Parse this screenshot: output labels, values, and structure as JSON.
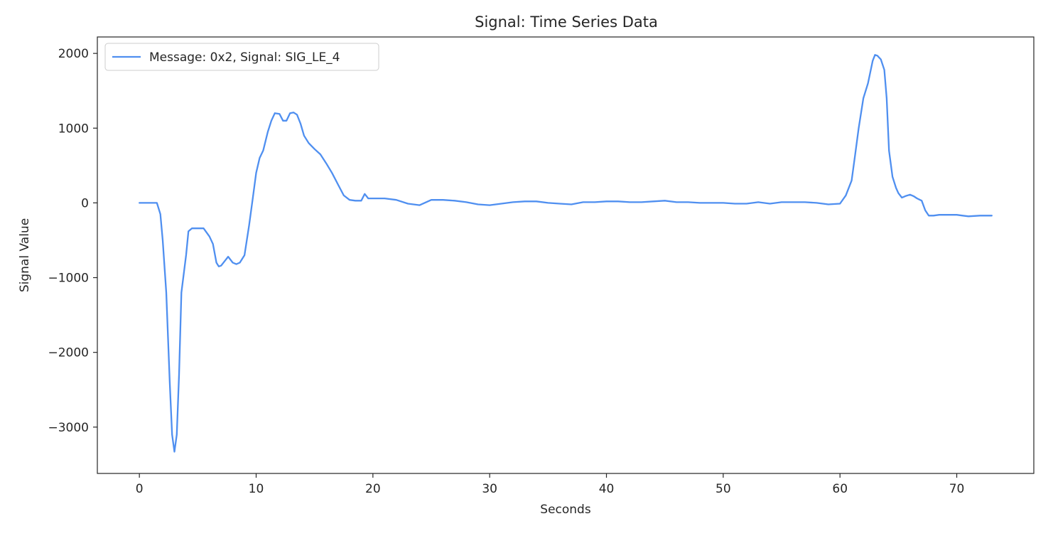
{
  "chart_data": {
    "type": "line",
    "title": "Signal: Time Series Data",
    "xlabel": "Seconds",
    "ylabel": "Signal Value",
    "xlim": [
      -3.6,
      76.6
    ],
    "ylim": [
      -3620,
      2220
    ],
    "xticks": [
      0,
      10,
      20,
      30,
      40,
      50,
      60,
      70
    ],
    "yticks": [
      -3000,
      -2000,
      -1000,
      0,
      1000,
      2000
    ],
    "ytick_labels": [
      "−3000",
      "−2000",
      "−1000",
      "0",
      "1000",
      "2000"
    ],
    "xtick_labels": [
      "0",
      "10",
      "20",
      "30",
      "40",
      "50",
      "60",
      "70"
    ],
    "grid": false,
    "legend_position": "upper-left",
    "series": [
      {
        "name": "Message: 0x2, Signal: SIG_LE_4",
        "color": "#4f8ff0",
        "x": [
          0,
          0.5,
          1,
          1.5,
          1.8,
          2.0,
          2.3,
          2.6,
          2.8,
          3.0,
          3.2,
          3.4,
          3.6,
          3.8,
          4.0,
          4.2,
          4.5,
          4.8,
          5.0,
          5.5,
          6.0,
          6.3,
          6.6,
          6.8,
          7.0,
          7.3,
          7.6,
          8.0,
          8.3,
          8.6,
          9.0,
          9.4,
          9.7,
          10.0,
          10.3,
          10.6,
          11.0,
          11.3,
          11.6,
          12.0,
          12.3,
          12.6,
          12.9,
          13.2,
          13.5,
          13.8,
          14.1,
          14.5,
          15.0,
          15.5,
          16.0,
          16.5,
          17.0,
          17.5,
          18.0,
          18.5,
          19.0,
          19.3,
          19.6,
          20.0,
          21.0,
          22.0,
          23.0,
          24.0,
          25.0,
          26.0,
          27.0,
          28.0,
          29.0,
          30.0,
          31.0,
          32.0,
          33.0,
          34.0,
          35.0,
          36.0,
          37.0,
          38.0,
          39.0,
          40.0,
          41.0,
          42.0,
          43.0,
          44.0,
          45.0,
          46.0,
          47.0,
          48.0,
          49.0,
          50.0,
          51.0,
          52.0,
          53.0,
          54.0,
          55.0,
          56.0,
          57.0,
          58.0,
          59.0,
          60.0,
          60.5,
          61.0,
          61.3,
          61.6,
          62.0,
          62.4,
          62.8,
          63.0,
          63.2,
          63.5,
          63.8,
          64.0,
          64.2,
          64.5,
          64.8,
          65.0,
          65.3,
          65.6,
          66.0,
          66.3,
          66.6,
          67.0,
          67.3,
          67.6,
          68.0,
          68.5,
          69.0,
          69.5,
          70.0,
          70.5,
          71.0,
          72.0,
          73.0
        ],
        "y": [
          0,
          0,
          0,
          0,
          -150,
          -500,
          -1200,
          -2400,
          -3100,
          -3330,
          -3100,
          -2300,
          -1200,
          -950,
          -700,
          -380,
          -340,
          -340,
          -340,
          -340,
          -450,
          -550,
          -800,
          -850,
          -840,
          -780,
          -720,
          -800,
          -820,
          -800,
          -700,
          -300,
          50,
          400,
          600,
          700,
          950,
          1100,
          1200,
          1190,
          1100,
          1100,
          1200,
          1210,
          1180,
          1060,
          900,
          800,
          720,
          650,
          530,
          400,
          250,
          100,
          40,
          30,
          30,
          120,
          60,
          60,
          60,
          40,
          -10,
          -30,
          40,
          40,
          30,
          10,
          -20,
          -30,
          -10,
          10,
          20,
          20,
          0,
          -10,
          -20,
          10,
          10,
          20,
          20,
          10,
          10,
          20,
          30,
          10,
          10,
          0,
          0,
          0,
          -10,
          -10,
          10,
          -10,
          10,
          10,
          10,
          0,
          -20,
          -10,
          100,
          300,
          650,
          1000,
          1400,
          1600,
          1900,
          1980,
          1970,
          1920,
          1780,
          1400,
          700,
          350,
          200,
          130,
          70,
          90,
          110,
          90,
          60,
          30,
          -100,
          -170,
          -170,
          -160,
          -160,
          -160,
          -160,
          -170,
          -180,
          -170,
          -170
        ]
      }
    ]
  }
}
